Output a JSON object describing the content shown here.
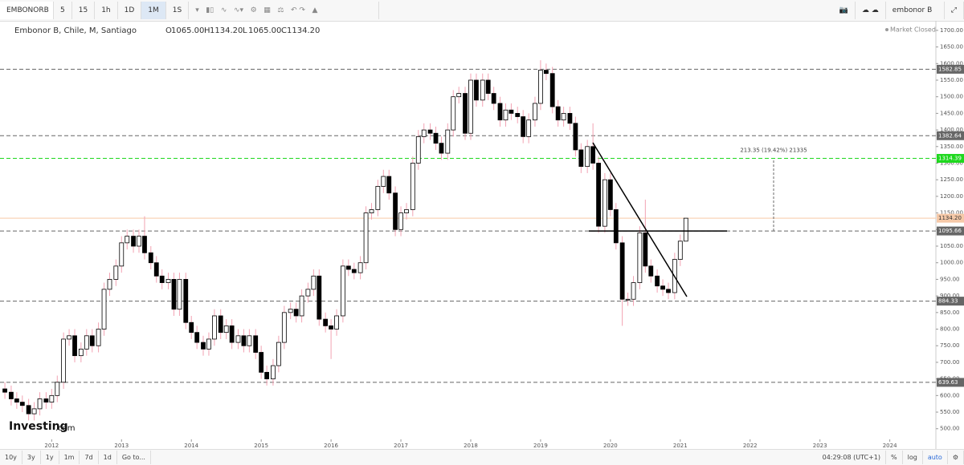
{
  "toolbar": {
    "symbol": "EMBONORB",
    "intervals": [
      "5",
      "15",
      "1h",
      "1D",
      "1M",
      "1S"
    ],
    "user": "embonor B"
  },
  "header": {
    "title": "Embonor B, Chile, M, Santiago",
    "ohlc": [
      {
        "key": "O",
        "value": "1065.00"
      },
      {
        "key": "H",
        "value": "1134.20"
      },
      {
        "key": "L",
        "value": "1065.00"
      },
      {
        "key": "C",
        "value": "1134.20"
      }
    ],
    "status": "Market Closed"
  },
  "logo": {
    "brand": "Investing",
    "suffix": ".com"
  },
  "footer": {
    "ranges": [
      "10y",
      "3y",
      "1y",
      "1m",
      "7d",
      "1d",
      "Go to..."
    ],
    "time": "04:29:08 (UTC+1)",
    "options": [
      "%",
      "log",
      "auto"
    ]
  },
  "chart_data": {
    "type": "candlestick",
    "x": [
      2011.33,
      2011.42,
      2011.5,
      2011.58,
      2011.67,
      2011.75,
      2011.83,
      2011.92,
      2012,
      2012.08,
      2012.17,
      2012.25,
      2012.33,
      2012.42,
      2012.5,
      2012.58,
      2012.67,
      2012.75,
      2012.83,
      2012.92,
      2013,
      2013.08,
      2013.17,
      2013.25,
      2013.33,
      2013.42,
      2013.5,
      2013.58,
      2013.67,
      2013.75,
      2013.83,
      2013.92,
      2014,
      2014.08,
      2014.17,
      2014.25,
      2014.33,
      2014.42,
      2014.5,
      2014.58,
      2014.67,
      2014.75,
      2014.83,
      2014.92,
      2015,
      2015.08,
      2015.17,
      2015.25,
      2015.33,
      2015.42,
      2015.5,
      2015.58,
      2015.67,
      2015.75,
      2015.83,
      2015.92,
      2016,
      2016.08,
      2016.17,
      2016.25,
      2016.33,
      2016.42,
      2016.5,
      2016.58,
      2016.67,
      2016.75,
      2016.83,
      2016.92,
      2017,
      2017.08,
      2017.17,
      2017.25,
      2017.33,
      2017.42,
      2017.5,
      2017.58,
      2017.67,
      2017.75,
      2017.83,
      2017.92,
      2018,
      2018.08,
      2018.17,
      2018.25,
      2018.33,
      2018.42,
      2018.5,
      2018.58,
      2018.67,
      2018.75,
      2018.83,
      2018.92,
      2019,
      2019.08,
      2019.17,
      2019.25,
      2019.33,
      2019.42,
      2019.5,
      2019.58,
      2019.67,
      2019.75,
      2019.83,
      2019.92,
      2020,
      2020.08,
      2020.17,
      2020.25,
      2020.33,
      2020.42,
      2020.5,
      2020.58,
      2020.67,
      2020.75,
      2020.83,
      2020.92,
      2021,
      2021.08
    ],
    "open": [
      620,
      610,
      590,
      580,
      570,
      545,
      560,
      590,
      580,
      600,
      640,
      770,
      780,
      720,
      740,
      780,
      750,
      800,
      920,
      950,
      990,
      1060,
      1080,
      1050,
      1080,
      1030,
      1000,
      960,
      940,
      950,
      860,
      950,
      820,
      790,
      760,
      740,
      770,
      840,
      790,
      810,
      760,
      780,
      750,
      780,
      730,
      670,
      650,
      690,
      760,
      850,
      860,
      840,
      900,
      920,
      960,
      830,
      810,
      800,
      840,
      990,
      980,
      970,
      1000,
      1150,
      1160,
      1230,
      1260,
      1210,
      1100,
      1150,
      1160,
      1300,
      1380,
      1400,
      1390,
      1360,
      1330,
      1400,
      1500,
      1510,
      1390,
      1550,
      1490,
      1550,
      1510,
      1480,
      1430,
      1460,
      1450,
      1440,
      1380,
      1430,
      1480,
      1580,
      1570,
      1470,
      1430,
      1450,
      1420,
      1340,
      1290,
      1350,
      1300,
      1110,
      1250,
      1160,
      1060,
      890,
      890,
      940,
      1090,
      990,
      960,
      930,
      920,
      910,
      1010,
      1065
    ],
    "high": [
      640,
      630,
      610,
      600,
      590,
      580,
      610,
      610,
      620,
      660,
      790,
      800,
      800,
      760,
      800,
      800,
      820,
      940,
      970,
      1010,
      1080,
      1100,
      1100,
      1100,
      1140,
      1050,
      1020,
      980,
      970,
      970,
      970,
      970,
      840,
      810,
      780,
      790,
      860,
      860,
      830,
      830,
      800,
      800,
      800,
      800,
      750,
      690,
      710,
      780,
      870,
      880,
      880,
      920,
      940,
      980,
      980,
      850,
      830,
      860,
      1010,
      1010,
      1000,
      1020,
      1170,
      1180,
      1250,
      1280,
      1280,
      1230,
      1170,
      1180,
      1320,
      1400,
      1420,
      1420,
      1410,
      1380,
      1420,
      1520,
      1530,
      1530,
      1570,
      1570,
      1570,
      1570,
      1530,
      1500,
      1480,
      1480,
      1470,
      1460,
      1450,
      1500,
      1610,
      1600,
      1590,
      1490,
      1470,
      1470,
      1440,
      1360,
      1370,
      1420,
      1320,
      1270,
      1270,
      1180,
      1080,
      910,
      960,
      1110,
      1190,
      1010,
      980,
      950,
      940,
      1030,
      1085,
      1134.2
    ],
    "low": [
      590,
      570,
      560,
      550,
      525,
      525,
      540,
      560,
      560,
      580,
      620,
      750,
      700,
      700,
      720,
      730,
      730,
      780,
      900,
      930,
      970,
      1040,
      1030,
      1030,
      1010,
      980,
      940,
      920,
      920,
      840,
      840,
      800,
      770,
      740,
      720,
      720,
      750,
      770,
      770,
      740,
      740,
      730,
      730,
      710,
      650,
      630,
      630,
      670,
      740,
      830,
      820,
      820,
      880,
      900,
      810,
      790,
      710,
      780,
      820,
      960,
      950,
      950,
      980,
      1130,
      1140,
      1210,
      1190,
      1080,
      1080,
      1130,
      1140,
      1280,
      1360,
      1370,
      1340,
      1310,
      1310,
      1380,
      1480,
      1370,
      1370,
      1470,
      1470,
      1490,
      1460,
      1410,
      1410,
      1430,
      1420,
      1360,
      1360,
      1410,
      1460,
      1550,
      1450,
      1410,
      1410,
      1400,
      1320,
      1270,
      1270,
      1280,
      1090,
      1090,
      1140,
      1040,
      810,
      870,
      870,
      920,
      970,
      940,
      910,
      900,
      890,
      890,
      990,
      1065
    ],
    "close": [
      610,
      590,
      580,
      570,
      545,
      560,
      590,
      580,
      600,
      640,
      770,
      780,
      720,
      740,
      780,
      750,
      800,
      920,
      950,
      990,
      1060,
      1080,
      1050,
      1080,
      1030,
      1000,
      960,
      940,
      950,
      860,
      950,
      820,
      790,
      760,
      740,
      770,
      840,
      790,
      810,
      760,
      780,
      750,
      780,
      730,
      670,
      650,
      690,
      760,
      850,
      860,
      840,
      900,
      920,
      960,
      830,
      810,
      800,
      840,
      990,
      980,
      970,
      1000,
      1150,
      1160,
      1230,
      1260,
      1210,
      1100,
      1150,
      1160,
      1300,
      1380,
      1400,
      1390,
      1360,
      1330,
      1400,
      1500,
      1510,
      1390,
      1550,
      1490,
      1550,
      1510,
      1480,
      1430,
      1460,
      1450,
      1440,
      1380,
      1430,
      1480,
      1580,
      1570,
      1470,
      1430,
      1450,
      1420,
      1340,
      1290,
      1350,
      1300,
      1110,
      1250,
      1160,
      1060,
      890,
      890,
      940,
      1090,
      990,
      960,
      930,
      920,
      910,
      1010,
      1065,
      1134.2
    ],
    "up_color": "#ffffff",
    "down_color": "#000000",
    "wick_color": "#f2a2b2",
    "xlim": [
      2011.26,
      2024.66
    ],
    "xticks": [
      2012,
      2013,
      2014,
      2015,
      2016,
      2017,
      2018,
      2019,
      2020,
      2021,
      2022,
      2023,
      2024
    ],
    "ylim": [
      468,
      1719
    ],
    "yticks": [
      {
        "value": 500,
        "label": "500.00"
      },
      {
        "value": 550,
        "label": "550.00"
      },
      {
        "value": 600,
        "label": "600.00"
      },
      {
        "value": 650,
        "label": "650.00"
      },
      {
        "value": 700,
        "label": "700.00"
      },
      {
        "value": 750,
        "label": "750.00"
      },
      {
        "value": 800,
        "label": "800.00"
      },
      {
        "value": 850,
        "label": "850.00"
      },
      {
        "value": 900,
        "label": "900.00"
      },
      {
        "value": 950,
        "label": "950.00"
      },
      {
        "value": 1000,
        "label": "1000.00"
      },
      {
        "value": 1050,
        "label": "1050.00"
      },
      {
        "value": 1100,
        "label": "1100.00"
      },
      {
        "value": 1150,
        "label": "1150.00"
      },
      {
        "value": 1200,
        "label": "1200.00"
      },
      {
        "value": 1250,
        "label": "1250.00"
      },
      {
        "value": 1300,
        "label": "1300.00"
      },
      {
        "value": 1350,
        "label": "1350.00"
      },
      {
        "value": 1400,
        "label": "1400.00"
      },
      {
        "value": 1450,
        "label": "1450.00"
      },
      {
        "value": 1500,
        "label": "1500.00"
      },
      {
        "value": 1550,
        "label": "1550.00"
      },
      {
        "value": 1600,
        "label": "1600.00"
      },
      {
        "value": 1650,
        "label": "1650.00"
      },
      {
        "value": 1700,
        "label": "1700.00"
      }
    ],
    "price_lines": [
      {
        "value": 1582.85,
        "label": "1582.85",
        "color": "#666666",
        "dashed": true
      },
      {
        "value": 1382.64,
        "label": "1382.64",
        "color": "#666666",
        "dashed": true
      },
      {
        "value": 1314.39,
        "label": "1314.39",
        "color": "#1ed81e",
        "dashed": true
      },
      {
        "value": 1134.2,
        "label": "1134.20",
        "color": "#f6c9a8",
        "dashed": false
      },
      {
        "value": 1095.66,
        "label": "1095.66",
        "color": "#666666",
        "dashed": true
      },
      {
        "value": 884.33,
        "label": "884.33",
        "color": "#666666",
        "dashed": true
      },
      {
        "value": 639.63,
        "label": "639.63",
        "color": "#666666",
        "dashed": true
      }
    ],
    "annotation": "213.35 (19.42%) 21335"
  }
}
